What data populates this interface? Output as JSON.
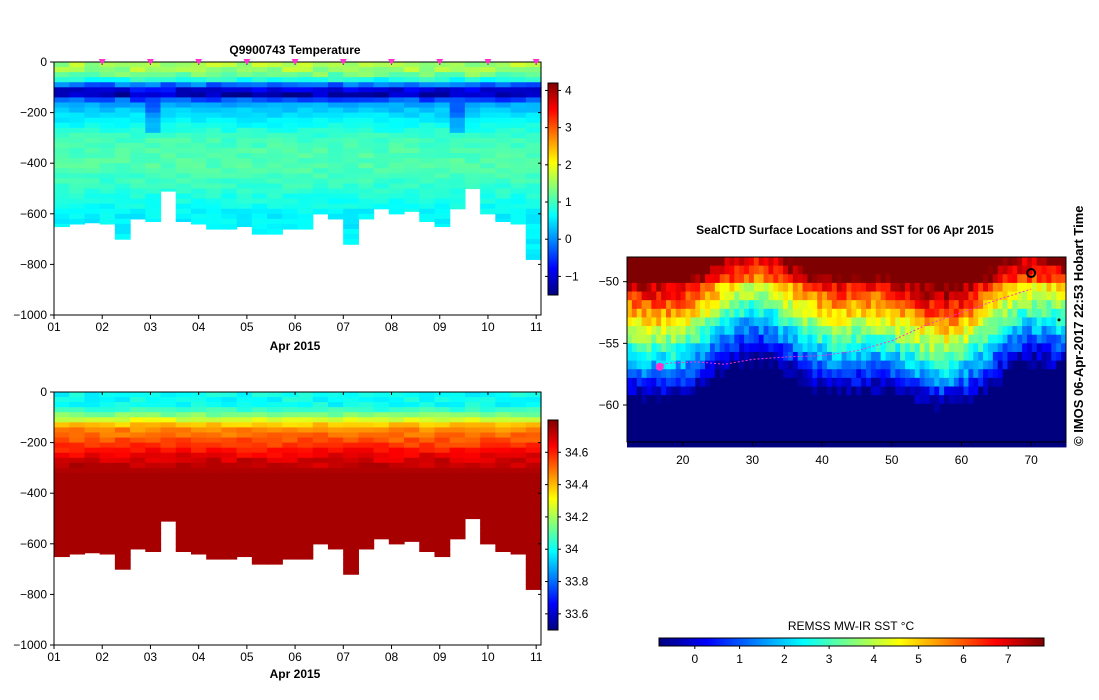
{
  "colors": {
    "jet": [
      "#00007f",
      "#0000ff",
      "#007fff",
      "#00ffff",
      "#7fff7f",
      "#ffff00",
      "#ff7f00",
      "#ff0000",
      "#7f0000"
    ],
    "profile_tip": "#ff33cc",
    "track": "#ff33cc"
  },
  "credit_text": "© IMOS 06-Apr-2017 22:53 Hobart Time",
  "chart_data": [
    {
      "id": "temperature",
      "type": "heatmap",
      "title": "Q9900743  Temperature",
      "xlabel": "Apr 2015",
      "ylabel": "",
      "xlim": [
        1,
        11.1
      ],
      "ylim": [
        -1000,
        0
      ],
      "x_ticks": [
        1,
        2,
        3,
        4,
        5,
        6,
        7,
        8,
        9,
        10,
        11
      ],
      "x_tick_labels": [
        "01",
        "02",
        "03",
        "04",
        "05",
        "06",
        "07",
        "08",
        "09",
        "10",
        "11"
      ],
      "y_ticks": [
        0,
        -200,
        -400,
        -600,
        -800,
        -1000
      ],
      "y_tick_labels": [
        "0",
        "−200",
        "−400",
        "−600",
        "−800",
        "−1000"
      ],
      "colorbar": {
        "min": -1.5,
        "max": 4.2,
        "ticks": [
          -1,
          0,
          1,
          2,
          3,
          4
        ],
        "tick_labels": [
          "−1",
          "0",
          "1",
          "2",
          "3",
          "4"
        ]
      },
      "profile_markers": [
        2,
        3,
        4,
        5,
        6,
        7,
        8,
        9,
        10,
        11
      ],
      "profile_max_depth": [
        -650,
        -640,
        -635,
        -640,
        -700,
        -620,
        -630,
        -510,
        -630,
        -640,
        -660,
        -660,
        -650,
        -680,
        -680,
        -660,
        -660,
        -600,
        -620,
        -720,
        -620,
        -580,
        -600,
        -590,
        -630,
        -650,
        -580,
        -500,
        -600,
        -630,
        -640,
        -780
      ],
      "depth_profile": [
        [
          0,
          1.6
        ],
        [
          -40,
          1.5
        ],
        [
          -80,
          0.5
        ],
        [
          -100,
          -0.8
        ],
        [
          -130,
          -1.2
        ],
        [
          -160,
          0.1
        ],
        [
          -200,
          0.4
        ],
        [
          -300,
          1.0
        ],
        [
          -400,
          1.1
        ],
        [
          -500,
          0.9
        ],
        [
          -600,
          0.6
        ],
        [
          -800,
          0.5
        ]
      ]
    },
    {
      "id": "salinity",
      "type": "heatmap",
      "title": "",
      "xlabel": "Apr 2015",
      "ylabel": "",
      "xlim": [
        1,
        11.1
      ],
      "ylim": [
        -1000,
        0
      ],
      "x_ticks": [
        1,
        2,
        3,
        4,
        5,
        6,
        7,
        8,
        9,
        10,
        11
      ],
      "x_tick_labels": [
        "01",
        "02",
        "03",
        "04",
        "05",
        "06",
        "07",
        "08",
        "09",
        "10",
        "11"
      ],
      "y_ticks": [
        0,
        -200,
        -400,
        -600,
        -800,
        -1000
      ],
      "y_tick_labels": [
        "0",
        "−200",
        "−400",
        "−600",
        "−800",
        "−1000"
      ],
      "colorbar": {
        "min": 33.5,
        "max": 34.8,
        "ticks": [
          33.6,
          33.8,
          34,
          34.2,
          34.4,
          34.6
        ],
        "tick_labels": [
          "33.6",
          "33.8",
          "34",
          "34.2",
          "34.4",
          "34.6"
        ]
      },
      "profile_max_depth": [
        -650,
        -640,
        -635,
        -640,
        -700,
        -620,
        -630,
        -510,
        -630,
        -640,
        -660,
        -660,
        -650,
        -680,
        -680,
        -660,
        -660,
        -600,
        -620,
        -720,
        -620,
        -580,
        -600,
        -590,
        -630,
        -650,
        -580,
        -500,
        -600,
        -630,
        -640,
        -780
      ],
      "depth_profile": [
        [
          0,
          34.0
        ],
        [
          -60,
          34.0
        ],
        [
          -100,
          34.2
        ],
        [
          -140,
          34.45
        ],
        [
          -200,
          34.55
        ],
        [
          -260,
          34.68
        ],
        [
          -320,
          34.75
        ],
        [
          -1000,
          34.75
        ]
      ]
    },
    {
      "id": "sst_map",
      "type": "heatmap",
      "title": "SealCTD Surface Locations and SST for 06 Apr 2015",
      "xlabel": "",
      "ylabel": "",
      "xlim": [
        12,
        75
      ],
      "ylim": [
        -63,
        -48
      ],
      "x_ticks": [
        20,
        30,
        40,
        50,
        60,
        70
      ],
      "x_tick_labels": [
        "20",
        "30",
        "40",
        "50",
        "60",
        "70"
      ],
      "y_ticks": [
        -50,
        -55,
        -60
      ],
      "y_tick_labels": [
        "−50",
        "−55",
        "−60"
      ],
      "colorbar": {
        "label": "REMSS MW-IR SST °C",
        "min": -0.8,
        "max": 7.8,
        "ticks": [
          0,
          1,
          2,
          3,
          4,
          5,
          6,
          7
        ],
        "tick_labels": [
          "0",
          "1",
          "2",
          "3",
          "4",
          "5",
          "6",
          "7"
        ]
      },
      "track": [
        [
          16.5,
          -56.8
        ],
        [
          18,
          -56.6
        ],
        [
          22,
          -56.5
        ],
        [
          26,
          -56.7
        ],
        [
          30,
          -56.3
        ],
        [
          35,
          -56.1
        ],
        [
          40,
          -56
        ],
        [
          45,
          -55.6
        ],
        [
          50,
          -54.8
        ],
        [
          55,
          -53.5
        ],
        [
          60,
          -52.5
        ],
        [
          65,
          -51.5
        ],
        [
          70,
          -50.6
        ]
      ],
      "track_start": [
        16.7,
        -56.9
      ]
    }
  ]
}
